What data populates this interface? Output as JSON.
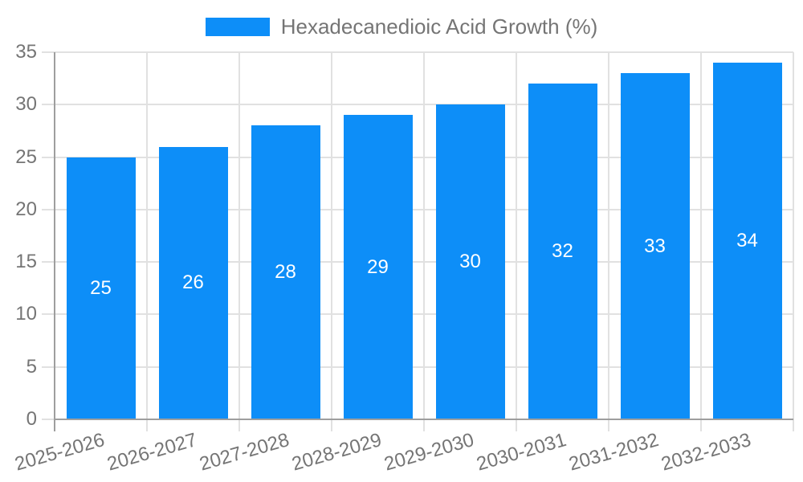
{
  "chart_data": {
    "type": "bar",
    "title": "Hexadecanedioic Acid Growth (%)",
    "legend": [
      "Hexadecanedioic Acid Growth (%)"
    ],
    "legend_position": "top-center",
    "categories": [
      "2025-2026",
      "2026-2027",
      "2027-2028",
      "2028-2029",
      "2029-2030",
      "2030-2031",
      "2031-2032",
      "2032-2033"
    ],
    "values": [
      25,
      26,
      28,
      29,
      30,
      32,
      33,
      34
    ],
    "value_labels_shown": true,
    "xlabel": "",
    "ylabel": "",
    "ylim": [
      0,
      35
    ],
    "yticks": [
      0,
      5,
      10,
      15,
      20,
      25,
      30,
      35
    ],
    "grid": true,
    "colors": {
      "bar": "#0d8ef8",
      "grid": "#e1e1e1",
      "axis": "#9e9e9e",
      "tick_text": "#757575",
      "value_label": "#ffffff",
      "background": "#ffffff"
    }
  }
}
